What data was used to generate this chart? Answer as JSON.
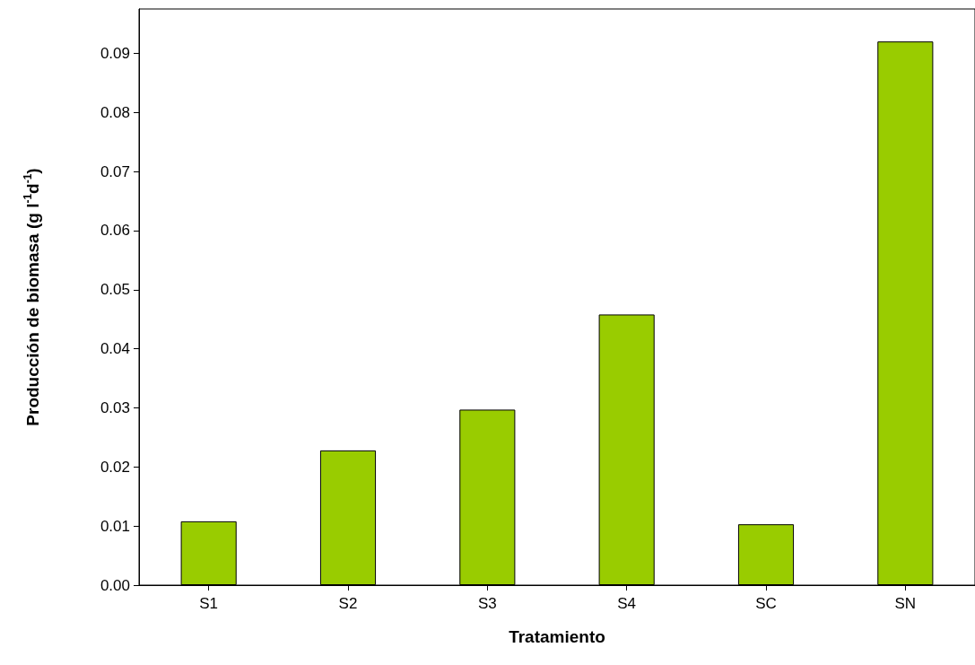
{
  "chart_data": {
    "type": "bar",
    "xlabel": "Tratamiento",
    "ylabel": "Producción de biomasa (g l$^{-1}$d$^{-1}$)",
    "categories": [
      "S1",
      "S2",
      "S3",
      "S4",
      "SC",
      "SN"
    ],
    "values": [
      0.0108,
      0.0228,
      0.0297,
      0.0458,
      0.0103,
      0.092
    ],
    "color": "#99cc00",
    "ylim": [
      0,
      0.0975
    ],
    "yticks": [
      {
        "value": 0,
        "label": "0.00"
      },
      0.01,
      0.02,
      0.03,
      0.04,
      0.05,
      0.06,
      0.07,
      0.08,
      0.09
    ],
    "grid": false
  }
}
